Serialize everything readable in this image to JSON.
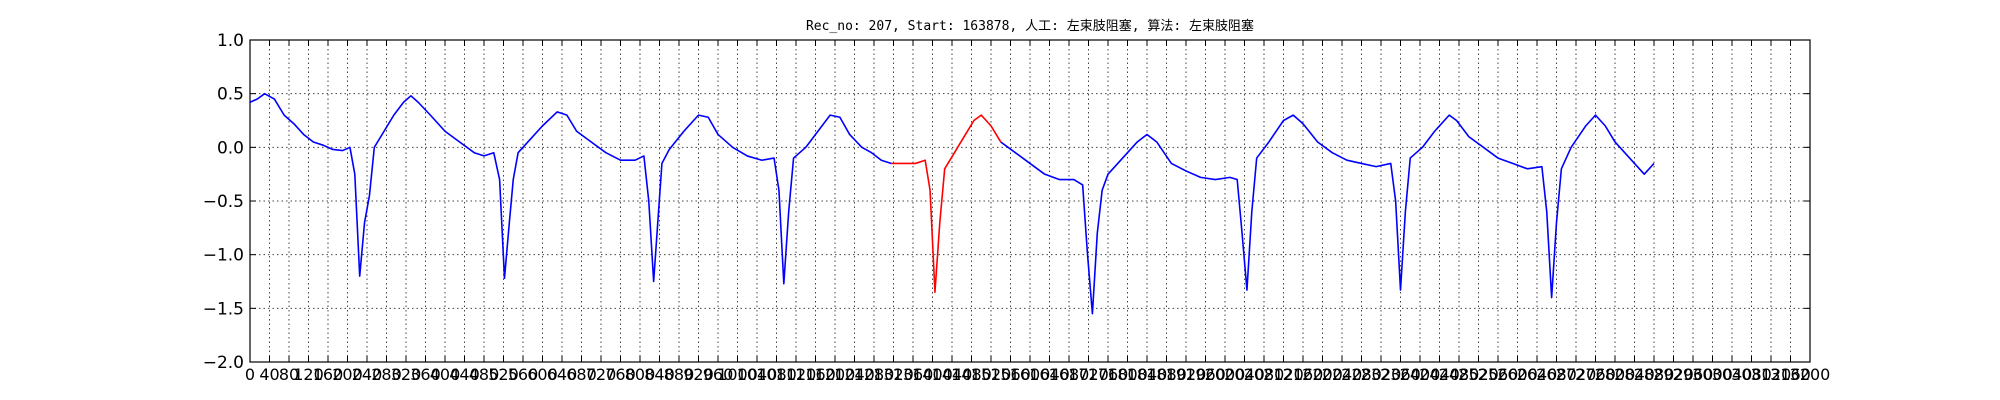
{
  "chart_data": {
    "type": "line",
    "title": "Rec_no: 207, Start: 163878, 人工: 左束肢阻塞, 算法: 左束肢阻塞",
    "xlabel": "",
    "ylabel": "",
    "xlim": [
      0,
      3200
    ],
    "ylim": [
      -2.0,
      1.0
    ],
    "grid": true,
    "yticks": [
      1.0,
      0.5,
      0.0,
      -0.5,
      -1.0,
      -1.5,
      -2.0
    ],
    "ytick_labels": [
      "1.0",
      "0.5",
      "0.0",
      "−0.5",
      "−1.0",
      "−1.5",
      "−2.0"
    ],
    "xticks": [
      0,
      40,
      80,
      120,
      160,
      200,
      240,
      280,
      320,
      360,
      400,
      440,
      480,
      520,
      560,
      600,
      640,
      680,
      720,
      760,
      800,
      840,
      880,
      920,
      960,
      1000,
      1040,
      1080,
      1120,
      1160,
      1200,
      1240,
      1280,
      1320,
      1360,
      1400,
      1440,
      1480,
      1520,
      1560,
      1600,
      1640,
      1680,
      1720,
      1760,
      1800,
      1840,
      1880,
      1920,
      1960,
      2000,
      2040,
      2080,
      2120,
      2160,
      2200,
      2240,
      2280,
      2320,
      2360,
      2400,
      2440,
      2480,
      2520,
      2560,
      2600,
      2640,
      2680,
      2720,
      2760,
      2800,
      2840,
      2880,
      2920,
      2960,
      3000,
      3040,
      3080,
      3120,
      3160,
      3200
    ],
    "series": [
      {
        "color": "#0000ff",
        "points": [
          [
            0,
            0.42
          ],
          [
            15,
            0.45
          ],
          [
            30,
            0.5
          ],
          [
            50,
            0.45
          ],
          [
            70,
            0.3
          ],
          [
            90,
            0.22
          ],
          [
            110,
            0.12
          ],
          [
            130,
            0.05
          ],
          [
            150,
            0.02
          ],
          [
            170,
            -0.02
          ],
          [
            190,
            -0.03
          ],
          [
            205,
            0.0
          ],
          [
            215,
            -0.25
          ],
          [
            225,
            -1.2
          ],
          [
            235,
            -0.7
          ],
          [
            245,
            -0.45
          ],
          [
            255,
            0.0
          ],
          [
            275,
            0.15
          ],
          [
            295,
            0.3
          ],
          [
            315,
            0.42
          ],
          [
            330,
            0.48
          ],
          [
            345,
            0.42
          ],
          [
            370,
            0.3
          ],
          [
            400,
            0.15
          ],
          [
            430,
            0.05
          ],
          [
            460,
            -0.05
          ],
          [
            480,
            -0.08
          ],
          [
            500,
            -0.05
          ],
          [
            512,
            -0.3
          ],
          [
            522,
            -1.22
          ],
          [
            532,
            -0.7
          ],
          [
            540,
            -0.3
          ],
          [
            550,
            -0.05
          ],
          [
            570,
            0.05
          ],
          [
            600,
            0.2
          ],
          [
            630,
            0.33
          ],
          [
            650,
            0.3
          ],
          [
            670,
            0.15
          ],
          [
            700,
            0.05
          ],
          [
            730,
            -0.05
          ],
          [
            760,
            -0.12
          ],
          [
            790,
            -0.12
          ],
          [
            808,
            -0.08
          ],
          [
            818,
            -0.5
          ],
          [
            828,
            -1.25
          ],
          [
            838,
            -0.6
          ],
          [
            845,
            -0.15
          ],
          [
            860,
            -0.02
          ],
          [
            890,
            0.15
          ],
          [
            920,
            0.3
          ],
          [
            940,
            0.28
          ],
          [
            960,
            0.12
          ],
          [
            990,
            0.0
          ],
          [
            1020,
            -0.08
          ],
          [
            1050,
            -0.12
          ],
          [
            1075,
            -0.1
          ],
          [
            1085,
            -0.4
          ],
          [
            1095,
            -1.27
          ],
          [
            1105,
            -0.6
          ],
          [
            1115,
            -0.1
          ],
          [
            1140,
            0.0
          ],
          [
            1170,
            0.18
          ],
          [
            1190,
            0.3
          ],
          [
            1210,
            0.28
          ],
          [
            1230,
            0.12
          ],
          [
            1255,
            0.0
          ],
          [
            1275,
            -0.05
          ],
          [
            1295,
            -0.12
          ],
          [
            1315,
            -0.15
          ]
        ]
      },
      {
        "color": "#ff0000",
        "points": [
          [
            1315,
            -0.15
          ],
          [
            1340,
            -0.15
          ],
          [
            1365,
            -0.15
          ],
          [
            1385,
            -0.12
          ],
          [
            1395,
            -0.4
          ],
          [
            1405,
            -1.35
          ],
          [
            1415,
            -0.7
          ],
          [
            1425,
            -0.2
          ],
          [
            1445,
            -0.05
          ],
          [
            1465,
            0.1
          ],
          [
            1485,
            0.25
          ],
          [
            1500,
            0.3
          ],
          [
            1520,
            0.2
          ],
          [
            1540,
            0.05
          ]
        ]
      },
      {
        "color": "#0000ff",
        "points": [
          [
            1540,
            0.05
          ],
          [
            1570,
            -0.05
          ],
          [
            1600,
            -0.15
          ],
          [
            1630,
            -0.25
          ],
          [
            1660,
            -0.3
          ],
          [
            1690,
            -0.3
          ],
          [
            1708,
            -0.35
          ],
          [
            1718,
            -1.0
          ],
          [
            1728,
            -1.55
          ],
          [
            1738,
            -0.8
          ],
          [
            1748,
            -0.4
          ],
          [
            1760,
            -0.25
          ],
          [
            1790,
            -0.1
          ],
          [
            1820,
            0.05
          ],
          [
            1840,
            0.12
          ],
          [
            1860,
            0.05
          ],
          [
            1890,
            -0.15
          ],
          [
            1920,
            -0.22
          ],
          [
            1950,
            -0.28
          ],
          [
            1980,
            -0.3
          ],
          [
            2010,
            -0.28
          ],
          [
            2025,
            -0.3
          ],
          [
            2035,
            -0.8
          ],
          [
            2045,
            -1.33
          ],
          [
            2055,
            -0.6
          ],
          [
            2065,
            -0.1
          ],
          [
            2090,
            0.05
          ],
          [
            2120,
            0.25
          ],
          [
            2140,
            0.3
          ],
          [
            2160,
            0.22
          ],
          [
            2190,
            0.05
          ],
          [
            2220,
            -0.05
          ],
          [
            2250,
            -0.12
          ],
          [
            2280,
            -0.15
          ],
          [
            2310,
            -0.18
          ],
          [
            2340,
            -0.15
          ],
          [
            2350,
            -0.5
          ],
          [
            2360,
            -1.33
          ],
          [
            2370,
            -0.6
          ],
          [
            2380,
            -0.1
          ],
          [
            2405,
            0.0
          ],
          [
            2430,
            0.15
          ],
          [
            2460,
            0.3
          ],
          [
            2475,
            0.25
          ],
          [
            2500,
            0.1
          ],
          [
            2530,
            0.0
          ],
          [
            2560,
            -0.1
          ],
          [
            2590,
            -0.15
          ],
          [
            2620,
            -0.2
          ],
          [
            2650,
            -0.18
          ],
          [
            2660,
            -0.6
          ],
          [
            2670,
            -1.4
          ],
          [
            2680,
            -0.7
          ],
          [
            2690,
            -0.2
          ],
          [
            2710,
            0.0
          ],
          [
            2740,
            0.2
          ],
          [
            2760,
            0.3
          ],
          [
            2780,
            0.2
          ],
          [
            2800,
            0.05
          ],
          [
            2820,
            -0.05
          ],
          [
            2840,
            -0.15
          ],
          [
            2860,
            -0.25
          ],
          [
            2880,
            -0.15
          ]
        ]
      }
    ]
  }
}
